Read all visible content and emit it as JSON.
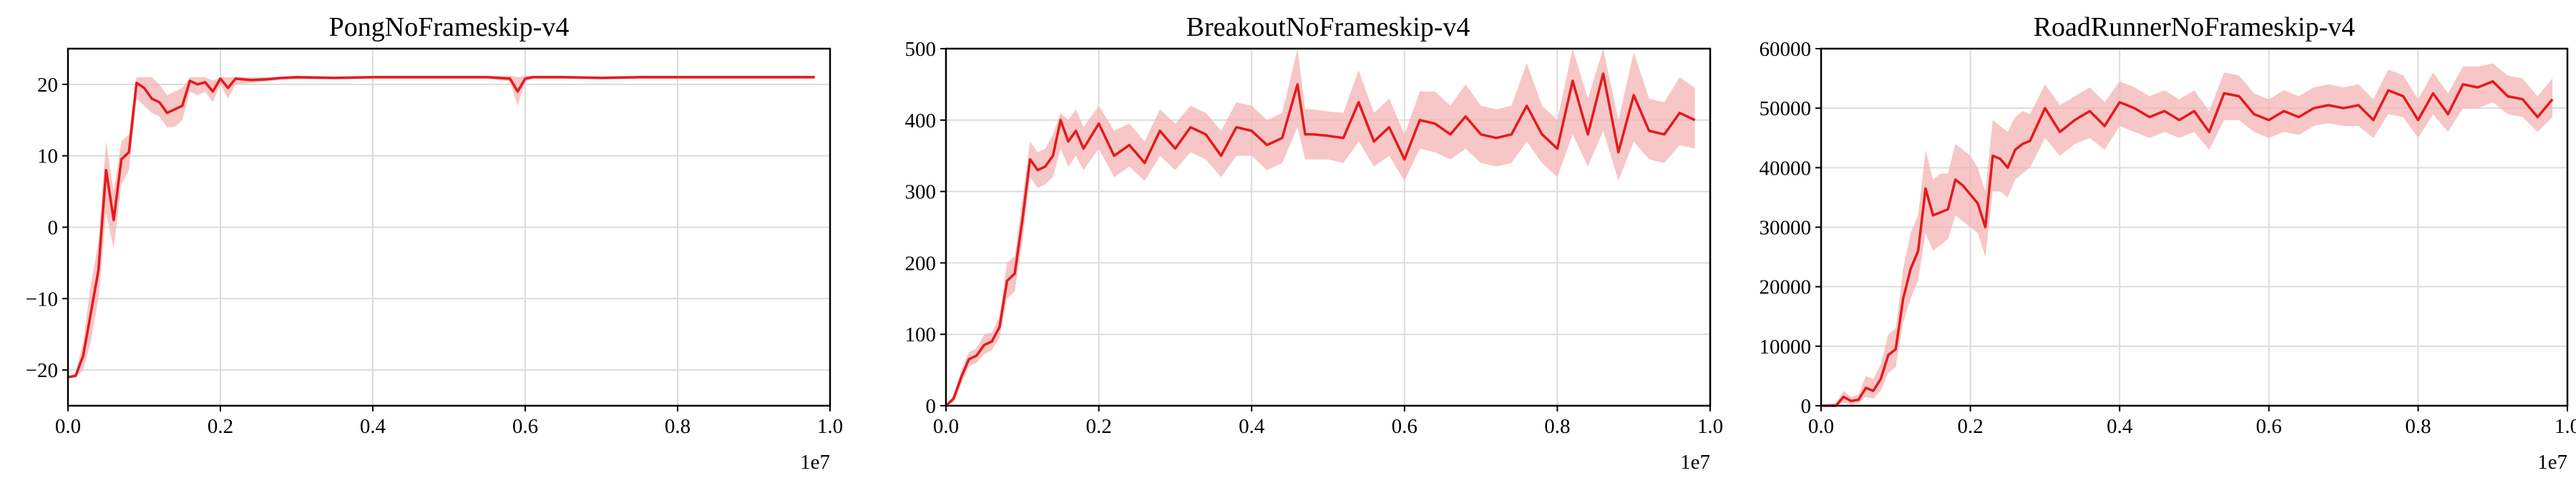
{
  "chart_data": [
    {
      "type": "line",
      "title": "PongNoFrameskip-v4",
      "xlabel": "",
      "ylabel": "",
      "x_offset_label": "1e7",
      "xlim": [
        0.0,
        1.0
      ],
      "ylim": [
        -25,
        25
      ],
      "xticks": [
        0.0,
        0.2,
        0.4,
        0.6,
        0.8,
        1.0
      ],
      "xtick_labels": [
        "0.0",
        "0.2",
        "0.4",
        "0.6",
        "0.8",
        "1.0"
      ],
      "yticks": [
        -20,
        -10,
        0,
        10,
        20
      ],
      "ytick_labels": [
        "−20",
        "−10",
        "0",
        "10",
        "20"
      ],
      "grid": true,
      "series": [
        {
          "color": "#e41a1c",
          "band_color": "#f4b3b3",
          "x": [
            0.0,
            0.01,
            0.02,
            0.03,
            0.04,
            0.05,
            0.06,
            0.07,
            0.08,
            0.09,
            0.1,
            0.11,
            0.12,
            0.13,
            0.14,
            0.15,
            0.16,
            0.17,
            0.18,
            0.19,
            0.2,
            0.21,
            0.22,
            0.24,
            0.26,
            0.28,
            0.3,
            0.35,
            0.4,
            0.45,
            0.5,
            0.55,
            0.58,
            0.59,
            0.6,
            0.61,
            0.62,
            0.65,
            0.7,
            0.75,
            0.8,
            0.85,
            0.9,
            0.95,
            0.98
          ],
          "mean": [
            -21,
            -20.8,
            -18,
            -12,
            -6,
            8,
            1,
            9.5,
            10.5,
            20.2,
            19.5,
            18,
            17.5,
            16,
            16.5,
            17,
            20.5,
            20,
            20.3,
            19,
            20.8,
            19.5,
            20.8,
            20.6,
            20.7,
            20.9,
            21,
            20.9,
            21,
            21,
            21,
            21,
            20.8,
            19,
            20.8,
            21,
            21,
            21,
            20.9,
            21,
            21,
            21,
            21,
            21,
            21
          ],
          "lower": [
            -21,
            -21,
            -20,
            -16,
            -10,
            2,
            -3,
            6,
            8,
            18,
            17,
            16,
            15.5,
            14,
            14,
            15,
            19,
            18.5,
            19,
            17.5,
            20,
            18,
            20,
            20.2,
            20.4,
            20.6,
            20.7,
            20.7,
            20.8,
            20.8,
            20.8,
            20.8,
            20.4,
            17,
            20.4,
            20.8,
            20.8,
            20.8,
            20.7,
            20.8,
            20.8,
            20.8,
            20.8,
            20.8,
            20.8
          ],
          "upper": [
            -21,
            -20.5,
            -16,
            -8,
            -2,
            12,
            5,
            12,
            13,
            21,
            21,
            21,
            20,
            18.5,
            19,
            19.5,
            21,
            21,
            21,
            20.5,
            21,
            21,
            21,
            21,
            21,
            21,
            21.2,
            21.1,
            21.2,
            21.2,
            21.2,
            21.2,
            21.2,
            21,
            21.2,
            21.2,
            21.2,
            21.2,
            21.1,
            21.2,
            21.2,
            21.2,
            21.2,
            21.2,
            21.2
          ]
        }
      ]
    },
    {
      "type": "line",
      "title": "BreakoutNoFrameskip-v4",
      "xlabel": "",
      "ylabel": "",
      "x_offset_label": "1e7",
      "xlim": [
        0.0,
        1.0
      ],
      "ylim": [
        0,
        500
      ],
      "xticks": [
        0.0,
        0.2,
        0.4,
        0.6,
        0.8,
        1.0
      ],
      "xtick_labels": [
        "0.0",
        "0.2",
        "0.4",
        "0.6",
        "0.8",
        "1.0"
      ],
      "yticks": [
        0,
        100,
        200,
        300,
        400,
        500
      ],
      "ytick_labels": [
        "0",
        "100",
        "200",
        "300",
        "400",
        "500"
      ],
      "grid": true,
      "series": [
        {
          "color": "#e41a1c",
          "band_color": "#f4b3b3",
          "x": [
            0.0,
            0.01,
            0.02,
            0.03,
            0.04,
            0.05,
            0.06,
            0.07,
            0.08,
            0.09,
            0.1,
            0.11,
            0.12,
            0.13,
            0.14,
            0.15,
            0.16,
            0.17,
            0.18,
            0.2,
            0.22,
            0.24,
            0.26,
            0.28,
            0.3,
            0.32,
            0.34,
            0.36,
            0.38,
            0.4,
            0.42,
            0.44,
            0.46,
            0.47,
            0.48,
            0.5,
            0.52,
            0.54,
            0.56,
            0.58,
            0.6,
            0.62,
            0.64,
            0.66,
            0.68,
            0.7,
            0.72,
            0.74,
            0.76,
            0.78,
            0.8,
            0.82,
            0.84,
            0.86,
            0.88,
            0.9,
            0.92,
            0.94,
            0.96,
            0.98
          ],
          "mean": [
            0,
            10,
            40,
            65,
            70,
            85,
            90,
            110,
            175,
            185,
            260,
            345,
            330,
            335,
            350,
            400,
            370,
            385,
            360,
            395,
            350,
            365,
            340,
            385,
            360,
            390,
            380,
            350,
            390,
            385,
            365,
            375,
            450,
            380,
            380,
            378,
            375,
            425,
            370,
            390,
            345,
            400,
            395,
            380,
            405,
            380,
            375,
            380,
            420,
            380,
            360,
            455,
            380,
            465,
            355,
            435,
            385,
            380,
            410,
            400
          ],
          "lower": [
            0,
            5,
            30,
            55,
            60,
            72,
            78,
            95,
            150,
            160,
            230,
            320,
            305,
            310,
            320,
            360,
            335,
            350,
            330,
            360,
            320,
            335,
            315,
            350,
            330,
            355,
            345,
            320,
            350,
            350,
            330,
            340,
            390,
            345,
            345,
            345,
            340,
            370,
            335,
            350,
            315,
            360,
            355,
            345,
            360,
            340,
            335,
            340,
            370,
            340,
            320,
            380,
            335,
            385,
            315,
            370,
            345,
            340,
            365,
            360
          ],
          "upper": [
            0,
            15,
            50,
            75,
            80,
            100,
            102,
            125,
            200,
            210,
            290,
            370,
            355,
            360,
            380,
            410,
            400,
            415,
            390,
            420,
            385,
            395,
            370,
            415,
            395,
            420,
            410,
            385,
            425,
            420,
            400,
            410,
            500,
            415,
            415,
            412,
            410,
            470,
            410,
            430,
            380,
            440,
            440,
            420,
            450,
            420,
            415,
            420,
            480,
            420,
            400,
            500,
            430,
            500,
            400,
            495,
            430,
            425,
            460,
            445
          ]
        }
      ]
    },
    {
      "type": "line",
      "title": "RoadRunnerNoFrameskip-v4",
      "xlabel": "",
      "ylabel": "",
      "x_offset_label": "1e7",
      "xlim": [
        0.0,
        1.0
      ],
      "ylim": [
        0,
        60000
      ],
      "xticks": [
        0.0,
        0.2,
        0.4,
        0.6,
        0.8,
        1.0
      ],
      "xtick_labels": [
        "0.0",
        "0.2",
        "0.4",
        "0.6",
        "0.8",
        "1.0"
      ],
      "yticks": [
        0,
        10000,
        20000,
        30000,
        40000,
        50000,
        60000
      ],
      "ytick_labels": [
        "0",
        "10000",
        "20000",
        "30000",
        "40000",
        "50000",
        "60000"
      ],
      "grid": true,
      "series": [
        {
          "color": "#e41a1c",
          "band_color": "#f4b3b3",
          "x": [
            0.0,
            0.02,
            0.03,
            0.04,
            0.05,
            0.06,
            0.07,
            0.08,
            0.09,
            0.1,
            0.11,
            0.12,
            0.13,
            0.14,
            0.15,
            0.16,
            0.17,
            0.18,
            0.19,
            0.2,
            0.21,
            0.22,
            0.23,
            0.24,
            0.25,
            0.26,
            0.27,
            0.28,
            0.3,
            0.32,
            0.34,
            0.36,
            0.38,
            0.4,
            0.42,
            0.44,
            0.46,
            0.48,
            0.5,
            0.52,
            0.54,
            0.56,
            0.58,
            0.6,
            0.62,
            0.64,
            0.66,
            0.68,
            0.7,
            0.72,
            0.74,
            0.76,
            0.78,
            0.8,
            0.82,
            0.84,
            0.86,
            0.88,
            0.9,
            0.92,
            0.94,
            0.96,
            0.98
          ],
          "mean": [
            0,
            0,
            1500,
            800,
            1000,
            3000,
            2500,
            4500,
            8500,
            9500,
            18000,
            23000,
            26000,
            36500,
            32000,
            32500,
            33000,
            38000,
            37000,
            35500,
            34000,
            30000,
            42000,
            41500,
            40000,
            43000,
            44000,
            44500,
            50000,
            46000,
            48000,
            49500,
            47000,
            51000,
            50000,
            48500,
            49500,
            48000,
            49500,
            46000,
            52500,
            52000,
            49000,
            48000,
            49500,
            48500,
            50000,
            50500,
            50000,
            50500,
            48000,
            53000,
            52000,
            48000,
            52500,
            49000,
            54000,
            53500,
            54500,
            52000,
            51500,
            48500,
            51500
          ],
          "lower": [
            0,
            0,
            500,
            200,
            400,
            1500,
            1200,
            2500,
            5500,
            6500,
            14000,
            18000,
            21000,
            29000,
            26000,
            27000,
            28000,
            32000,
            31000,
            30000,
            29000,
            25000,
            36000,
            36000,
            35000,
            38000,
            39000,
            40000,
            45000,
            42000,
            44000,
            45000,
            43000,
            47000,
            46000,
            45000,
            46000,
            45000,
            46000,
            43000,
            48000,
            48000,
            46000,
            45000,
            46000,
            45500,
            47000,
            47500,
            47000,
            47000,
            45000,
            49000,
            48500,
            45000,
            49000,
            46000,
            50000,
            50000,
            51000,
            49000,
            48500,
            46000,
            48500
          ],
          "upper": [
            0,
            500,
            2500,
            1500,
            1800,
            5000,
            4500,
            7000,
            12000,
            13000,
            23000,
            29000,
            32000,
            43000,
            38000,
            39000,
            39000,
            44000,
            43000,
            42000,
            40000,
            36000,
            48000,
            47000,
            46000,
            48500,
            49500,
            49000,
            54000,
            50500,
            52000,
            53500,
            51000,
            54500,
            53500,
            52000,
            53000,
            51500,
            53000,
            49500,
            56000,
            55500,
            52500,
            51500,
            53000,
            52000,
            53500,
            54000,
            53500,
            54000,
            51500,
            56500,
            55500,
            51500,
            56000,
            52500,
            57000,
            57000,
            57500,
            55500,
            55000,
            52000,
            55000
          ]
        }
      ]
    }
  ]
}
